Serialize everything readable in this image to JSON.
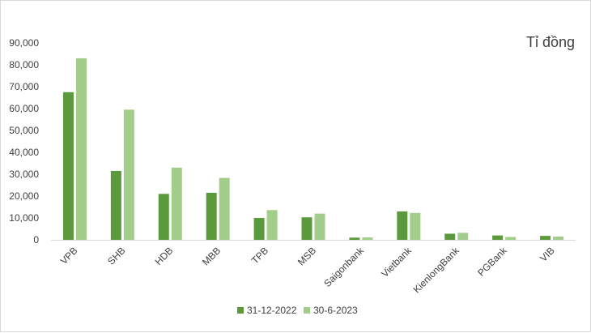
{
  "chart_data": {
    "type": "bar",
    "unit_label": "Tỉ đồng",
    "categories": [
      "VPB",
      "SHB",
      "HDB",
      "MBB",
      "TPB",
      "MSB",
      "Saigonbank",
      "Vietbank",
      "KienlongBank",
      "PGBank",
      "VIB"
    ],
    "series": [
      {
        "name": "31-12-2022",
        "color": "#5b9a3c",
        "values": [
          67500,
          31500,
          21000,
          21500,
          10000,
          10300,
          1000,
          13000,
          2800,
          2000,
          1800
        ]
      },
      {
        "name": "30-6-2023",
        "color": "#a2cd8a",
        "values": [
          83000,
          59500,
          33000,
          28300,
          13600,
          12000,
          1100,
          12300,
          3200,
          1300,
          1500
        ]
      }
    ],
    "yticks": [
      "0",
      "10,000",
      "20,000",
      "30,000",
      "40,000",
      "50,000",
      "60,000",
      "70,000",
      "80,000",
      "90,000"
    ],
    "ylim": [
      0,
      90000
    ],
    "legend_position": "bottom",
    "grid": false
  }
}
